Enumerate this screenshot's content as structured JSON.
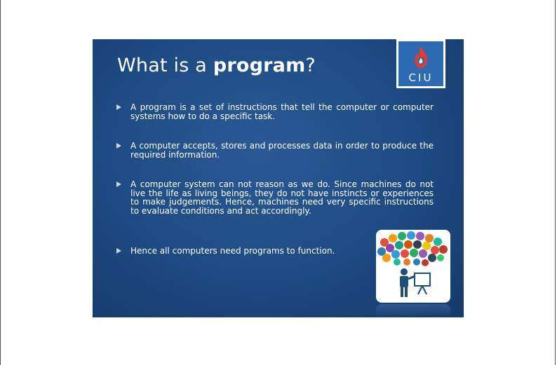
{
  "slide": {
    "title_plain": "What is a ",
    "title_bold": "program",
    "title_end": "?",
    "logo_text": "CIU",
    "bullets": [
      "A program is a set of instructions that tell the computer or computer systems how to do a specific task.",
      "A computer accepts, stores and processes data in order to produce the required information.",
      "A computer system can not reason as we do. Since machines do not live the life as living beings, they do not have instincts or experiences to make judgements. Hence, machines need very specific instructions to evaluate conditions and act accordingly.",
      "Hence all computers need programs to function."
    ]
  },
  "colors": {
    "slide_background": "#1d4a82",
    "logo_blue": "#2c6bb3",
    "logo_flame": "#e23a2e",
    "text": "#ffffff"
  },
  "icons": {
    "bullet": "triangle-right-icon",
    "illustration": "presenter-with-app-icons-illustration"
  }
}
